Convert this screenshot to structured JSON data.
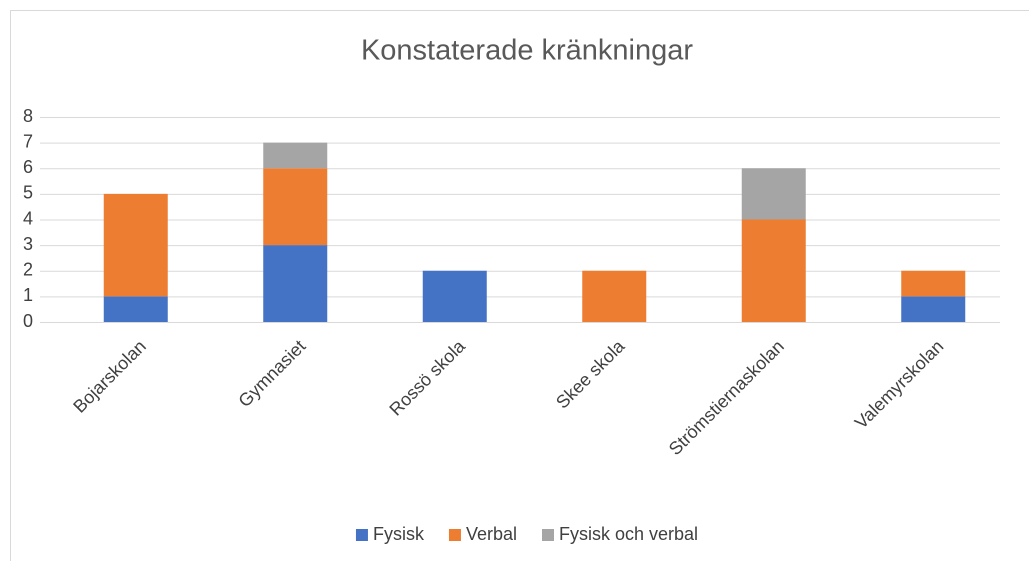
{
  "chart_data": {
    "type": "bar",
    "stacked": true,
    "title": "Konstaterade kränkningar",
    "categories": [
      "Bojarskolan",
      "Gymnasiet",
      "Rossö skola",
      "Skee skola",
      "Strömstiernaskolan",
      "Valemyrskolan"
    ],
    "series": [
      {
        "name": "Fysisk",
        "color": "#4472c4",
        "values": [
          1,
          3,
          2,
          0,
          0,
          1
        ]
      },
      {
        "name": "Verbal",
        "color": "#ed7d31",
        "values": [
          4,
          3,
          0,
          2,
          4,
          1
        ]
      },
      {
        "name": "Fysisk och verbal",
        "color": "#a5a5a5",
        "values": [
          0,
          1,
          0,
          0,
          2,
          0
        ]
      }
    ],
    "ylim": [
      0,
      8
    ],
    "yticks": [
      0,
      1,
      2,
      3,
      4,
      5,
      6,
      7,
      8
    ],
    "grid": true,
    "legend": "bottom"
  }
}
